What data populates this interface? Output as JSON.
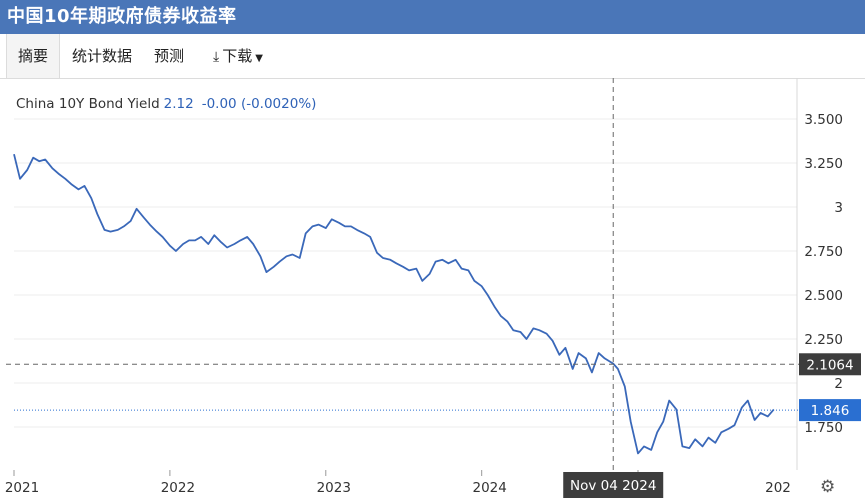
{
  "title": "中国10年期政府债券收益率",
  "tabs": [
    {
      "label": "摘要",
      "active": true
    },
    {
      "label": "统计数据",
      "active": false
    },
    {
      "label": "预测",
      "active": false
    },
    {
      "label": "下载",
      "active": false
    }
  ],
  "icons": {
    "download": "download-icon",
    "caret": "caret-down-icon",
    "settings": "gear-icon"
  },
  "legend": {
    "name": "China 10Y Bond Yield",
    "value": "2.12",
    "change": "-0.00 (-0.0020%)"
  },
  "colors": {
    "line": "#3a68b9",
    "title_bar": "#4a76b8",
    "crosshair_label": "#3d3d3d",
    "last_label": "#2a6fd1"
  },
  "chart_data": {
    "type": "line",
    "series": [
      {
        "name": "China 10Y Bond Yield",
        "points": [
          [
            "2021-01-01",
            3.3
          ],
          [
            "2021-01-15",
            3.16
          ],
          [
            "2021-02-01",
            3.21
          ],
          [
            "2021-02-15",
            3.28
          ],
          [
            "2021-03-01",
            3.26
          ],
          [
            "2021-03-15",
            3.27
          ],
          [
            "2021-04-01",
            3.22
          ],
          [
            "2021-04-15",
            3.19
          ],
          [
            "2021-05-01",
            3.16
          ],
          [
            "2021-05-15",
            3.13
          ],
          [
            "2021-06-01",
            3.1
          ],
          [
            "2021-06-15",
            3.12
          ],
          [
            "2021-07-01",
            3.05
          ],
          [
            "2021-07-15",
            2.96
          ],
          [
            "2021-08-01",
            2.87
          ],
          [
            "2021-08-15",
            2.86
          ],
          [
            "2021-09-01",
            2.87
          ],
          [
            "2021-09-15",
            2.89
          ],
          [
            "2021-10-01",
            2.92
          ],
          [
            "2021-10-15",
            2.99
          ],
          [
            "2021-11-01",
            2.94
          ],
          [
            "2021-11-15",
            2.9
          ],
          [
            "2021-12-01",
            2.86
          ],
          [
            "2021-12-15",
            2.83
          ],
          [
            "2022-01-01",
            2.78
          ],
          [
            "2022-01-15",
            2.75
          ],
          [
            "2022-02-01",
            2.79
          ],
          [
            "2022-02-15",
            2.81
          ],
          [
            "2022-03-01",
            2.81
          ],
          [
            "2022-03-15",
            2.83
          ],
          [
            "2022-04-01",
            2.79
          ],
          [
            "2022-04-15",
            2.84
          ],
          [
            "2022-05-01",
            2.8
          ],
          [
            "2022-05-15",
            2.77
          ],
          [
            "2022-06-01",
            2.79
          ],
          [
            "2022-06-15",
            2.81
          ],
          [
            "2022-07-01",
            2.83
          ],
          [
            "2022-07-15",
            2.79
          ],
          [
            "2022-08-01",
            2.72
          ],
          [
            "2022-08-15",
            2.63
          ],
          [
            "2022-09-01",
            2.66
          ],
          [
            "2022-09-15",
            2.69
          ],
          [
            "2022-10-01",
            2.72
          ],
          [
            "2022-10-15",
            2.73
          ],
          [
            "2022-11-01",
            2.71
          ],
          [
            "2022-11-15",
            2.85
          ],
          [
            "2022-12-01",
            2.89
          ],
          [
            "2022-12-15",
            2.9
          ],
          [
            "2023-01-01",
            2.88
          ],
          [
            "2023-01-15",
            2.93
          ],
          [
            "2023-02-01",
            2.91
          ],
          [
            "2023-02-15",
            2.89
          ],
          [
            "2023-03-01",
            2.89
          ],
          [
            "2023-03-15",
            2.87
          ],
          [
            "2023-04-01",
            2.85
          ],
          [
            "2023-04-15",
            2.83
          ],
          [
            "2023-05-01",
            2.74
          ],
          [
            "2023-05-15",
            2.71
          ],
          [
            "2023-06-01",
            2.7
          ],
          [
            "2023-06-15",
            2.68
          ],
          [
            "2023-07-01",
            2.66
          ],
          [
            "2023-07-15",
            2.64
          ],
          [
            "2023-08-01",
            2.65
          ],
          [
            "2023-08-15",
            2.58
          ],
          [
            "2023-09-01",
            2.62
          ],
          [
            "2023-09-15",
            2.69
          ],
          [
            "2023-10-01",
            2.7
          ],
          [
            "2023-10-15",
            2.68
          ],
          [
            "2023-11-01",
            2.7
          ],
          [
            "2023-11-15",
            2.65
          ],
          [
            "2023-12-01",
            2.64
          ],
          [
            "2023-12-15",
            2.58
          ],
          [
            "2024-01-01",
            2.55
          ],
          [
            "2024-01-15",
            2.5
          ],
          [
            "2024-02-01",
            2.43
          ],
          [
            "2024-02-15",
            2.38
          ],
          [
            "2024-03-01",
            2.35
          ],
          [
            "2024-03-15",
            2.3
          ],
          [
            "2024-04-01",
            2.29
          ],
          [
            "2024-04-15",
            2.25
          ],
          [
            "2024-05-01",
            2.31
          ],
          [
            "2024-05-15",
            2.3
          ],
          [
            "2024-06-01",
            2.28
          ],
          [
            "2024-06-15",
            2.24
          ],
          [
            "2024-07-01",
            2.16
          ],
          [
            "2024-07-15",
            2.2
          ],
          [
            "2024-08-01",
            2.08
          ],
          [
            "2024-08-15",
            2.17
          ],
          [
            "2024-09-01",
            2.14
          ],
          [
            "2024-09-15",
            2.06
          ],
          [
            "2024-10-01",
            2.17
          ],
          [
            "2024-10-15",
            2.14
          ],
          [
            "2024-11-04",
            2.11
          ],
          [
            "2024-11-15",
            2.08
          ],
          [
            "2024-12-01",
            1.98
          ],
          [
            "2024-12-15",
            1.78
          ],
          [
            "2025-01-01",
            1.6
          ],
          [
            "2025-01-15",
            1.64
          ],
          [
            "2025-02-01",
            1.62
          ],
          [
            "2025-02-15",
            1.72
          ],
          [
            "2025-03-01",
            1.78
          ],
          [
            "2025-03-15",
            1.9
          ],
          [
            "2025-04-01",
            1.85
          ],
          [
            "2025-04-15",
            1.64
          ],
          [
            "2025-05-01",
            1.63
          ],
          [
            "2025-05-15",
            1.68
          ],
          [
            "2025-06-01",
            1.64
          ],
          [
            "2025-06-15",
            1.69
          ],
          [
            "2025-07-01",
            1.66
          ],
          [
            "2025-07-15",
            1.72
          ],
          [
            "2025-08-01",
            1.74
          ],
          [
            "2025-08-15",
            1.76
          ],
          [
            "2025-09-01",
            1.86
          ],
          [
            "2025-09-15",
            1.9
          ],
          [
            "2025-10-01",
            1.79
          ],
          [
            "2025-10-15",
            1.83
          ],
          [
            "2025-11-01",
            1.81
          ],
          [
            "2025-11-15",
            1.85
          ]
        ]
      }
    ],
    "x_ticks": [
      {
        "label": "2021",
        "date": "2021-01-01"
      },
      {
        "label": "2022",
        "date": "2022-01-01"
      },
      {
        "label": "2023",
        "date": "2023-01-01"
      },
      {
        "label": "2024",
        "date": "2024-01-01"
      },
      {
        "label": "202",
        "date": "2025-01-01"
      }
    ],
    "y_ticks": [
      {
        "label": "3.500",
        "value": 3.5
      },
      {
        "label": "3.250",
        "value": 3.25
      },
      {
        "label": "3",
        "value": 3.0
      },
      {
        "label": "2.750",
        "value": 2.75
      },
      {
        "label": "2.500",
        "value": 2.5
      },
      {
        "label": "2.250",
        "value": 2.25
      },
      {
        "label": "2",
        "value": 2.0
      },
      {
        "label": "1.750",
        "value": 1.75
      }
    ],
    "ylim": [
      1.57,
      3.63
    ],
    "crosshair": {
      "date_label": "Nov 04 2024",
      "date": "2024-11-04",
      "value_label": "2.1064",
      "value": 2.1064
    },
    "last_value": {
      "label": "1.846",
      "value": 1.846
    },
    "grid": "horizontal"
  }
}
